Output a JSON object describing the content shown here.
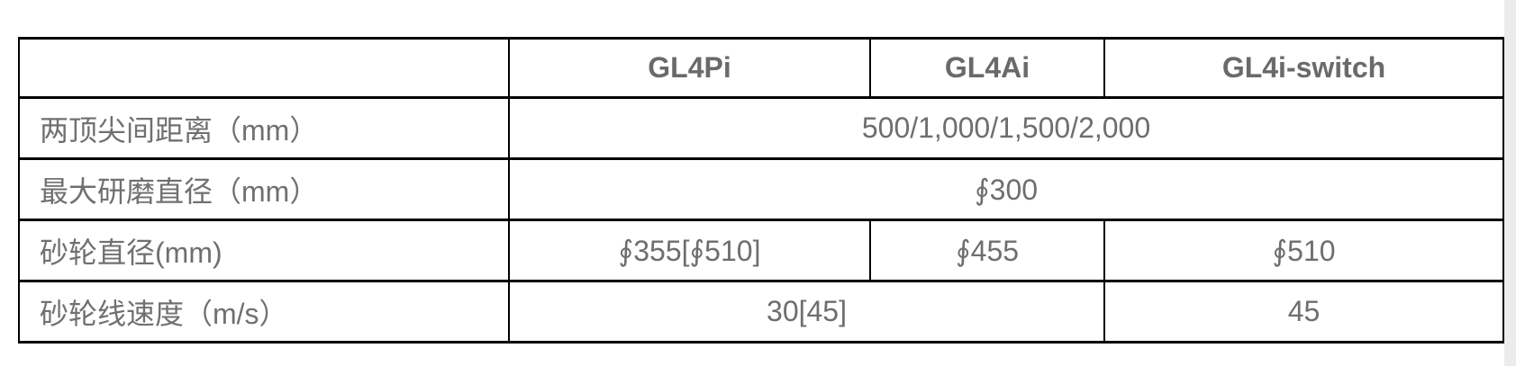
{
  "table": {
    "header": {
      "corner": "",
      "columns": [
        "GL4Pi",
        "GL4Ai",
        "GL4i-switch"
      ]
    },
    "rows": [
      {
        "label": "两顶尖间距离（mm）",
        "values": [
          "500/1,000/1,500/2,000"
        ],
        "span": "all-three-model-columns"
      },
      {
        "label": "最大研磨直径（mm）",
        "values": [
          "∮300"
        ],
        "span": "all-three-model-columns"
      },
      {
        "label": "砂轮直径(mm)",
        "values": [
          "∮355[∮510]",
          "∮455",
          "∮510"
        ],
        "span": "none"
      },
      {
        "label": "砂轮线速度（m/s）",
        "values": [
          "30[45]",
          "45"
        ],
        "span": "first-two-model-columns"
      }
    ],
    "colors": {
      "text": "#6e6e6e",
      "border": "#000000",
      "background": "#ffffff",
      "edge_strip": "#ececec"
    }
  }
}
